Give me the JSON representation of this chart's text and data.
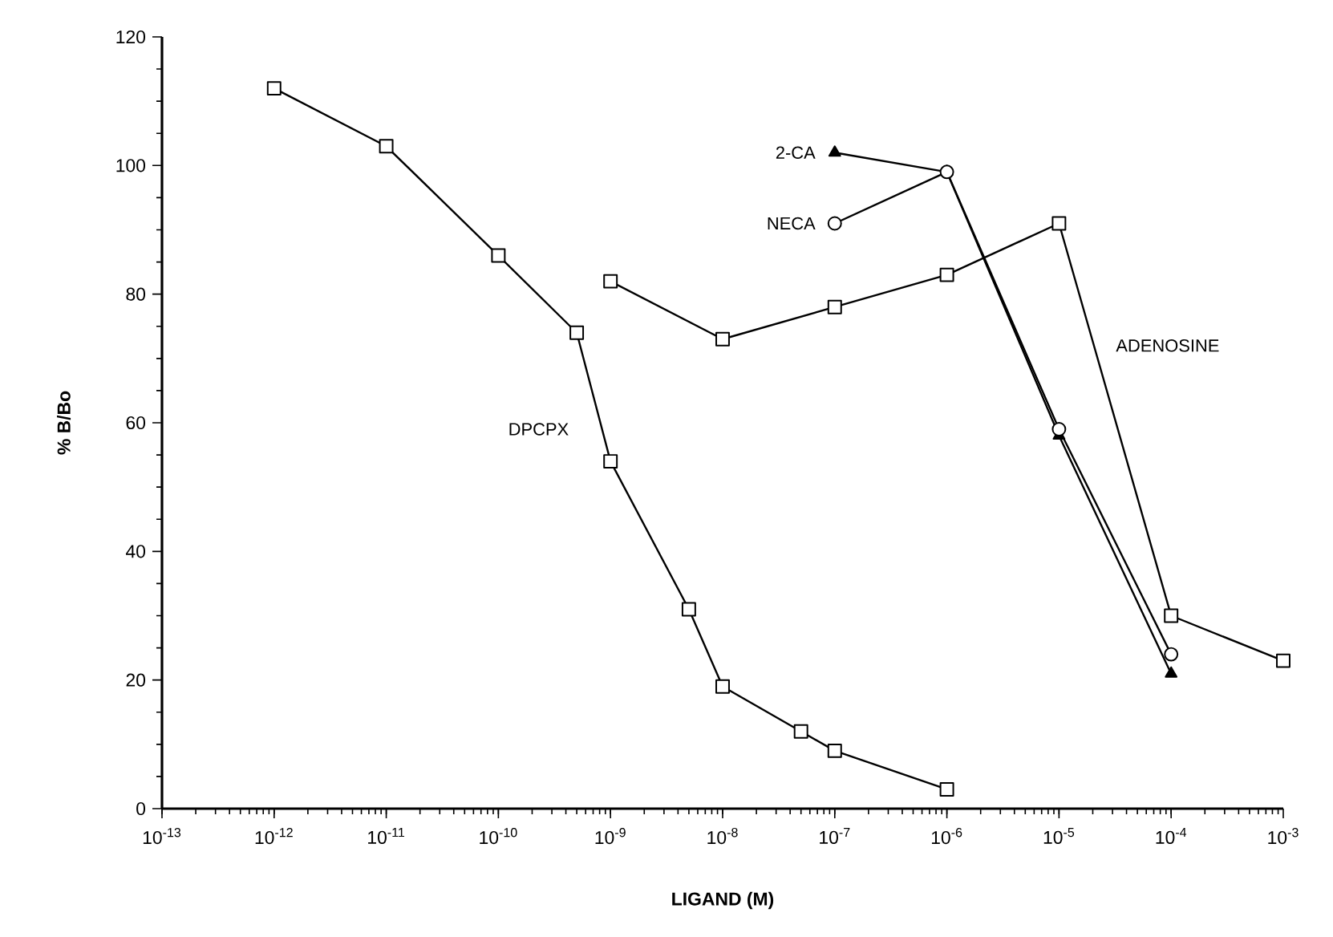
{
  "chart_data": {
    "type": "line",
    "xlabel": "LIGAND (M)",
    "ylabel": "% B/Bo",
    "log": "x",
    "grid": false,
    "xlim": [
      1e-13,
      0.001
    ],
    "ylim": [
      0,
      120
    ],
    "xticks": [
      {
        "value": 1e-13,
        "label": "10$^{-13}$"
      },
      {
        "value": 1e-12,
        "label": "10$^{-12}$"
      },
      {
        "value": 1e-11,
        "label": "10$^{-11}$"
      },
      {
        "value": 1e-10,
        "label": "10$^{-10}$"
      },
      {
        "value": 1e-09,
        "label": "10$^{-9}$"
      },
      {
        "value": 1e-08,
        "label": "10$^{-8}$"
      },
      {
        "value": 1e-07,
        "label": "10$^{-7}$"
      },
      {
        "value": 1e-06,
        "label": "10$^{-6}$"
      },
      {
        "value": 1e-05,
        "label": "10$^{-5}$"
      },
      {
        "value": 0.0001,
        "label": "10$^{-4}$"
      },
      {
        "value": 0.001,
        "label": "10$^{-3}$"
      }
    ],
    "yticks": [
      0,
      20,
      40,
      60,
      80,
      100,
      120
    ],
    "series": [
      {
        "name": "DPCPX",
        "color": "#000000",
        "marker": "square",
        "x": [
          1e-12,
          1e-11,
          1e-10,
          5e-10,
          1e-09,
          5e-09,
          1e-08,
          5e-08,
          1e-07,
          1e-06
        ],
        "values": [
          112,
          103,
          86,
          74,
          54,
          31,
          19,
          12,
          9,
          3
        ]
      },
      {
        "name": "ADENOSINE",
        "color": "#000000",
        "marker": "square",
        "x": [
          1e-09,
          1e-08,
          1e-07,
          1e-06,
          1e-05,
          0.0001,
          0.001
        ],
        "values": [
          82,
          73,
          78,
          83,
          91,
          30,
          23
        ]
      },
      {
        "name": "2-CA",
        "color": "#000000",
        "marker": "triangle",
        "x": [
          1e-07,
          1e-06,
          1e-05,
          0.0001
        ],
        "values": [
          102,
          99,
          58,
          21
        ]
      },
      {
        "name": "NECA",
        "color": "#000000",
        "marker": "circle",
        "x": [
          1e-07,
          1e-06,
          1e-05,
          0.0001
        ],
        "values": [
          91,
          99,
          59,
          24
        ]
      }
    ]
  }
}
